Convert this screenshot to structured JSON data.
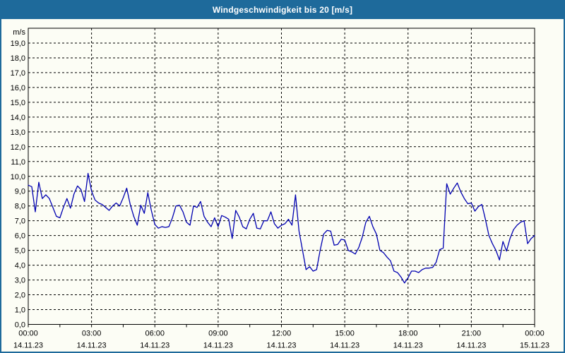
{
  "window": {
    "title": "Windgeschwindigkeit bis 20 [m/s]"
  },
  "colors": {
    "titlebar_bg": "#1e6a9b",
    "window_border": "#1e6a9b",
    "background": "#fcfdf5",
    "line": "#0000b0",
    "grid": "#000000",
    "text": "#000000"
  },
  "chart_data": {
    "type": "line",
    "title": "Windgeschwindigkeit bis 20 [m/s]",
    "xlabel": "",
    "ylabel": "m/s",
    "ylim": [
      0,
      20
    ],
    "y_tick_step": 1.0,
    "grid": "dashed",
    "legend": "none",
    "y_tick_labels": [
      "0,0",
      "1,0",
      "2,0",
      "3,0",
      "4,0",
      "5,0",
      "6,0",
      "7,0",
      "8,0",
      "9,0",
      "10,0",
      "11,0",
      "12,0",
      "13,0",
      "14,0",
      "15,0",
      "16,0",
      "17,0",
      "18,0",
      "19,0"
    ],
    "x_ticks": [
      {
        "hour": 0,
        "time": "00:00",
        "date": "14.11.23"
      },
      {
        "hour": 3,
        "time": "03:00",
        "date": "14.11.23"
      },
      {
        "hour": 6,
        "time": "06:00",
        "date": "14.11.23"
      },
      {
        "hour": 9,
        "time": "09:00",
        "date": "14.11.23"
      },
      {
        "hour": 12,
        "time": "12:00",
        "date": "14.11.23"
      },
      {
        "hour": 15,
        "time": "15:00",
        "date": "14.11.23"
      },
      {
        "hour": 18,
        "time": "18:00",
        "date": "14.11.23"
      },
      {
        "hour": 21,
        "time": "21:00",
        "date": "14.11.23"
      },
      {
        "hour": 24,
        "time": "00:00",
        "date": "15.11.23"
      }
    ],
    "x_minor_tick_hours": 1.5,
    "series": [
      {
        "name": "Windgeschwindigkeit",
        "unit": "m/s",
        "start": "14.11.23 00:00",
        "end": "15.11.23 00:00",
        "interval_minutes": 10,
        "values": [
          9.4,
          9.3,
          7.6,
          9.6,
          8.5,
          8.75,
          8.5,
          7.9,
          7.3,
          7.2,
          7.9,
          8.5,
          7.85,
          8.8,
          9.35,
          9.1,
          8.3,
          10.2,
          9.0,
          8.4,
          8.2,
          8.1,
          7.9,
          7.7,
          8.0,
          8.2,
          8.0,
          8.55,
          9.2,
          8.1,
          7.3,
          6.7,
          8.05,
          7.5,
          8.9,
          7.7,
          6.75,
          6.5,
          6.6,
          6.55,
          6.6,
          7.2,
          8.0,
          8.05,
          7.6,
          6.9,
          6.7,
          8.0,
          7.9,
          8.3,
          7.3,
          6.9,
          6.6,
          7.2,
          6.6,
          7.35,
          7.25,
          7.1,
          5.8,
          7.7,
          7.25,
          6.6,
          6.45,
          7.1,
          7.5,
          6.5,
          6.45,
          7.0,
          7.0,
          7.6,
          6.8,
          6.5,
          6.7,
          6.8,
          7.1,
          6.7,
          8.75,
          6.3,
          5.0,
          3.7,
          3.9,
          3.6,
          3.7,
          5.0,
          6.1,
          6.35,
          6.3,
          5.35,
          5.4,
          5.75,
          5.7,
          5.0,
          4.9,
          4.75,
          5.2,
          5.9,
          6.9,
          7.3,
          6.6,
          6.1,
          5.0,
          4.85,
          4.55,
          4.3,
          3.6,
          3.5,
          3.2,
          2.8,
          3.15,
          3.6,
          3.6,
          3.5,
          3.7,
          3.8,
          3.8,
          3.85,
          4.2,
          5.05,
          5.15,
          9.5,
          8.8,
          9.2,
          9.55,
          8.95,
          8.5,
          8.15,
          8.2,
          7.65,
          7.95,
          8.1,
          7.1,
          6.0,
          5.45,
          5.0,
          4.35,
          5.6,
          4.95,
          5.8,
          6.4,
          6.7,
          6.9,
          7.0,
          5.45,
          5.8,
          6.0
        ]
      }
    ]
  }
}
